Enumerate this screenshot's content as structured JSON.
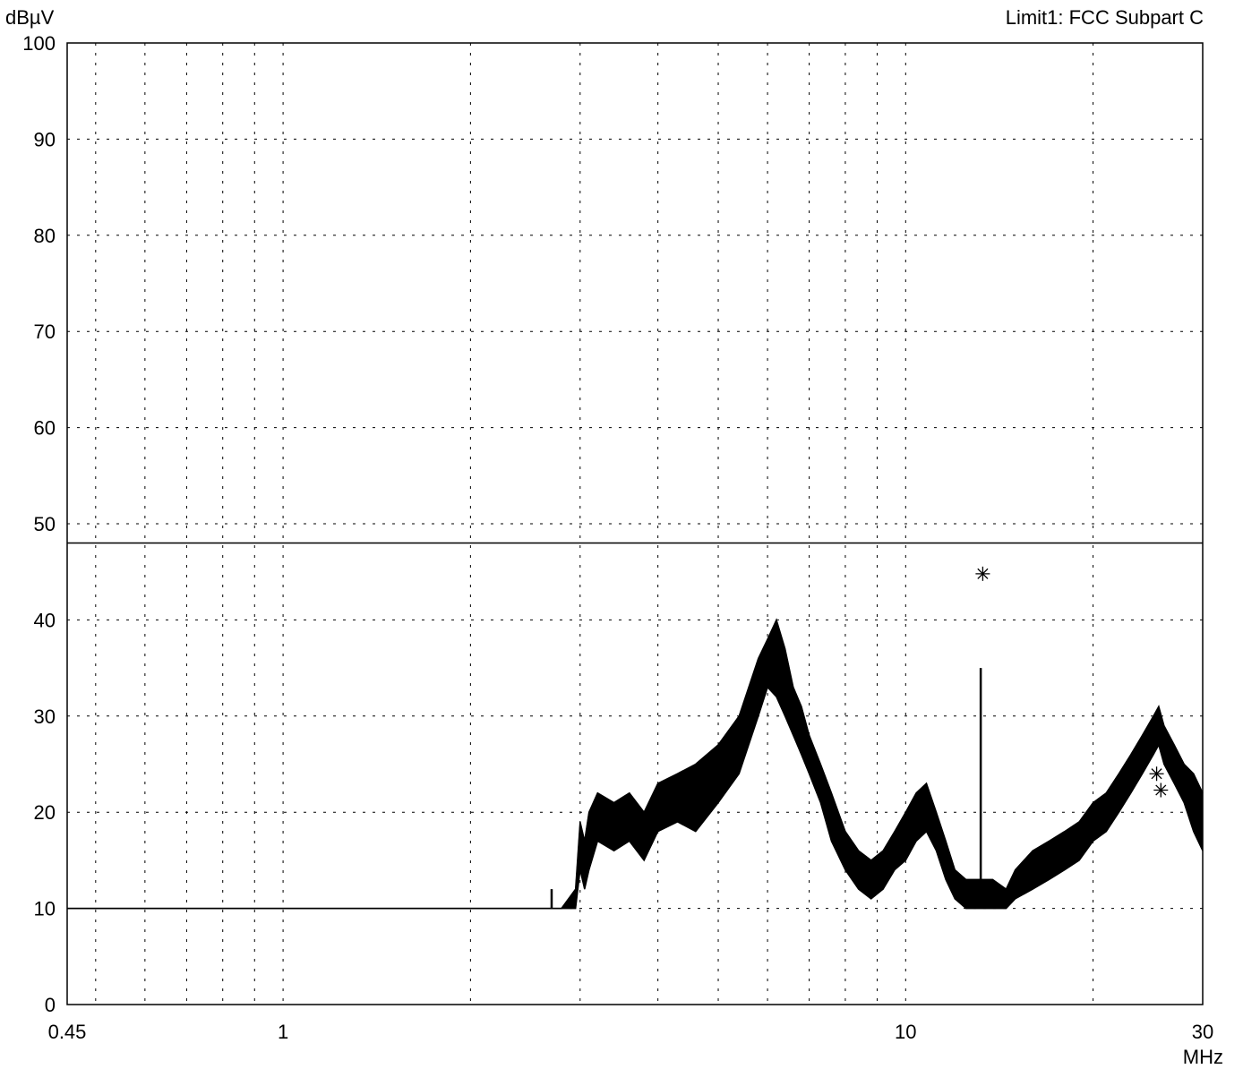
{
  "chart_data": {
    "type": "line",
    "title": "Limit1: FCC Subpart C",
    "ylabel": "dBµV",
    "xlabel": "MHz",
    "x_scale": "log",
    "xlim": [
      0.45,
      30
    ],
    "ylim": [
      0,
      100
    ],
    "grid": true,
    "x_tick_labels": [
      {
        "value": 0.45,
        "label": "0.45"
      },
      {
        "value": 1,
        "label": "1"
      },
      {
        "value": 10,
        "label": "10"
      },
      {
        "value": 30,
        "label": "30"
      }
    ],
    "x_minor_grid": [
      0.5,
      0.6,
      0.7,
      0.8,
      0.9,
      2,
      3,
      4,
      5,
      6,
      7,
      8,
      9,
      20
    ],
    "y_ticks": [
      0,
      10,
      20,
      30,
      40,
      50,
      60,
      70,
      80,
      90,
      100
    ],
    "limit_line": {
      "name": "Limit1: FCC Subpart C",
      "value": 48
    },
    "series": [
      {
        "kind": "trace",
        "x": [
          0.45,
          2.8,
          2.95,
          3.0,
          3.05,
          3.1,
          3.2,
          3.4,
          3.6,
          3.8,
          4.0,
          4.3,
          4.6,
          5.0,
          5.4,
          5.8,
          6.0,
          6.2,
          6.4,
          6.6,
          6.8,
          7.0,
          7.3,
          7.6,
          8.0,
          8.4,
          8.8,
          9.2,
          9.6,
          10.0,
          10.4,
          10.8,
          11.2,
          11.6,
          12.0,
          12.5,
          13.0,
          13.3,
          13.8,
          14.5,
          15.0,
          16.0,
          17.0,
          18.0,
          19.0,
          20.0,
          21.0,
          22.0,
          23.0,
          24.0,
          25.0,
          25.5,
          26.0,
          27.0,
          28.0,
          29.0,
          30.0
        ],
        "y": [
          10,
          10,
          10,
          14,
          12,
          14,
          17,
          16,
          17,
          15,
          18,
          19,
          18,
          21,
          24,
          30,
          33,
          32,
          30,
          28,
          26,
          24,
          21,
          17,
          14,
          12,
          11,
          12,
          14,
          15,
          17,
          18,
          16,
          13,
          11,
          10,
          10,
          10,
          10,
          10,
          11,
          12,
          13,
          14,
          15,
          17,
          18,
          20,
          22,
          24,
          26,
          27,
          25,
          23,
          21,
          18,
          16
        ],
        "upper_y": [
          10,
          10,
          12,
          19,
          17,
          20,
          22,
          21,
          22,
          20,
          23,
          24,
          25,
          27,
          30,
          36,
          38,
          40,
          37,
          33,
          31,
          28,
          25,
          22,
          18,
          16,
          15,
          16,
          18,
          20,
          22,
          23,
          20,
          17,
          14,
          13,
          13,
          13,
          13,
          12,
          14,
          16,
          17,
          18,
          19,
          21,
          22,
          24,
          26,
          28,
          30,
          31,
          29,
          27,
          25,
          24,
          22
        ]
      },
      {
        "kind": "spike",
        "x": [
          2.7,
          13.2
        ],
        "y": [
          12,
          35
        ]
      },
      {
        "kind": "markers",
        "x": [
          13.3,
          25.3,
          25.7
        ],
        "y": [
          44.8,
          24,
          22.3
        ]
      }
    ]
  }
}
